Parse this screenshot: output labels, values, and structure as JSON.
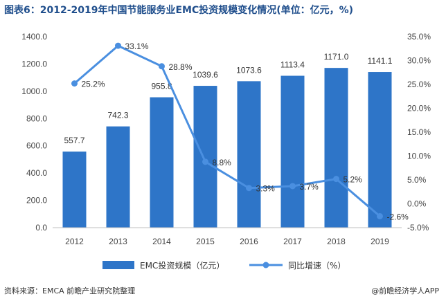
{
  "title": "图表6：2012-2019年中国节能服务业EMC投资规模变化情况(单位：亿元，%)",
  "source": "资料来源：EMCA 前瞻产业研究院整理",
  "brand": "@前瞻经济学人APP",
  "chart_data": {
    "type": "bar",
    "categories": [
      "2012",
      "2013",
      "2014",
      "2015",
      "2016",
      "2017",
      "2018",
      "2019"
    ],
    "series": [
      {
        "name": "EMC投资规模（亿元）",
        "type": "bar",
        "axis": "left",
        "values": [
          557.7,
          742.3,
          955.8,
          1039.6,
          1073.6,
          1113.4,
          1171.0,
          1141.1
        ],
        "labels": [
          "557.7",
          "742.3",
          "955.8",
          "1039.6",
          "1073.6",
          "1113.4",
          "1171.0",
          "1141.1"
        ],
        "color": "#2e75c8"
      },
      {
        "name": "同比增速（%）",
        "type": "line",
        "axis": "right",
        "values": [
          25.2,
          33.1,
          28.8,
          8.8,
          3.3,
          3.7,
          5.2,
          -2.6
        ],
        "labels": [
          "25.2%",
          "33.1%",
          "28.8%",
          "8.8%",
          "3.3%",
          "3.7%",
          "5.2%",
          "-2.6%"
        ],
        "color": "#4a8fe0"
      }
    ],
    "y_left": {
      "range": [
        0,
        1400
      ],
      "ticks": [
        0,
        200,
        400,
        600,
        800,
        1000,
        1200,
        1400
      ],
      "tick_labels": [
        "0.0",
        "200.0",
        "400.0",
        "600.0",
        "800.0",
        "1000.0",
        "1200.0",
        "1400.0"
      ]
    },
    "y_right": {
      "range": [
        -5,
        35
      ],
      "ticks": [
        -5,
        0,
        5,
        10,
        15,
        20,
        25,
        30,
        35
      ],
      "tick_labels": [
        "-5.0%",
        "0.0%",
        "5.0%",
        "10.0%",
        "15.0%",
        "20.0%",
        "25.0%",
        "30.0%",
        "35.0%"
      ]
    },
    "grid": false,
    "legend_position": "bottom"
  }
}
